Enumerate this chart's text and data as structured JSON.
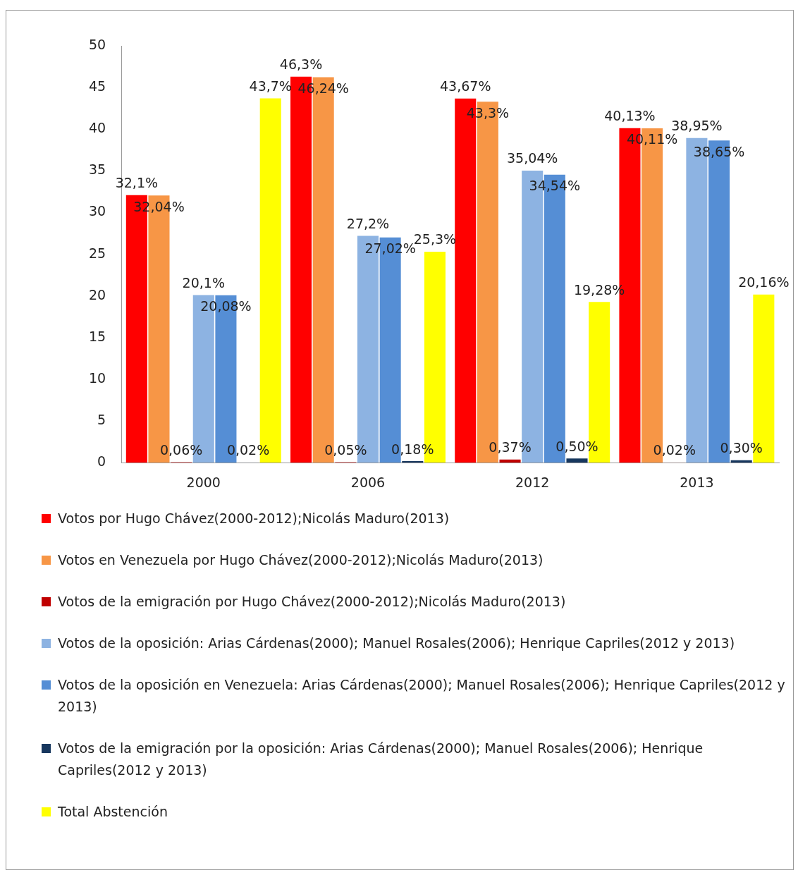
{
  "chart_data": {
    "type": "bar",
    "categories": [
      "2000",
      "2006",
      "2012",
      "2013"
    ],
    "ylim": [
      0,
      50
    ],
    "yticks": [
      0,
      5,
      10,
      15,
      20,
      25,
      30,
      35,
      40,
      45,
      50
    ],
    "grid": false,
    "legend": "bottom",
    "series": [
      {
        "name": "Votos por Hugo Chávez(2000-2012);Nicolás Maduro(2013)",
        "color": "#ff0000",
        "values": [
          32.1,
          46.3,
          43.67,
          40.13
        ],
        "value_labels": [
          "32,1%",
          "46,3%",
          "43,67%",
          "40,13%"
        ]
      },
      {
        "name": "Votos en Venezuela por Hugo Chávez(2000-2012);Nicolás Maduro(2013)",
        "color": "#f79646",
        "values": [
          32.04,
          46.24,
          43.3,
          40.11
        ],
        "value_labels": [
          "32,04%",
          "46,24%",
          "43,3%",
          "40,11%"
        ]
      },
      {
        "name": "Votos de la emigración por Hugo Chávez(2000-2012);Nicolás Maduro(2013)",
        "color": "#c00000",
        "values": [
          0.06,
          0.05,
          0.37,
          0.02
        ],
        "value_labels": [
          "0,06%",
          "0,05%",
          "0,37%",
          "0,02%"
        ]
      },
      {
        "name": "Votos de la oposición: Arias Cárdenas(2000); Manuel Rosales(2006); Henrique Capriles(2012 y 2013)",
        "color": "#8db3e2",
        "values": [
          20.1,
          27.2,
          35.04,
          38.95
        ],
        "value_labels": [
          "20,1%",
          "27,2%",
          "35,04%",
          "38,95%"
        ]
      },
      {
        "name": "Votos de la oposición en Venezuela: Arias Cárdenas(2000); Manuel Rosales(2006); Henrique Capriles(2012 y 2013)",
        "color": "#558ed5",
        "values": [
          20.08,
          27.02,
          34.54,
          38.65
        ],
        "value_labels": [
          "20,08%",
          "27,02%",
          "34,54%",
          "38,65%"
        ]
      },
      {
        "name": "Votos de la emigración por la oposición: Arias Cárdenas(2000); Manuel Rosales(2006); Henrique Capriles(2012 y 2013)",
        "color": "#17375e",
        "values": [
          0.02,
          0.18,
          0.5,
          0.3
        ],
        "value_labels": [
          "0,02%",
          "0,18%",
          "0,50%",
          "0,30%"
        ]
      },
      {
        "name": "Total Abstención",
        "color": "#ffff00",
        "values": [
          43.7,
          25.3,
          19.28,
          20.16
        ],
        "value_labels": [
          "43,7%",
          "25,3%",
          "19,28%",
          "20,16%"
        ]
      }
    ]
  }
}
